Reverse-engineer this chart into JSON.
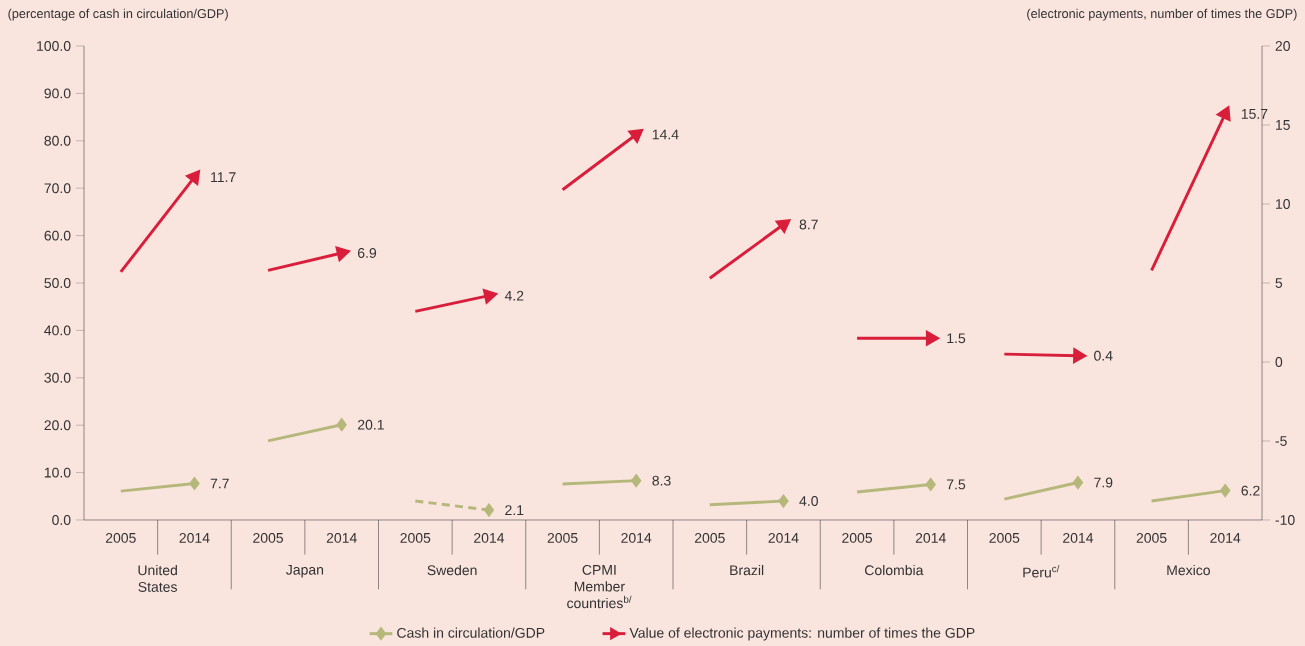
{
  "chart_data": {
    "type": "line",
    "ylabel": "(percentage of cash in circulation/GDP)",
    "y2label": "(electronic payments, number of times the GDP)",
    "categories": [
      "2005",
      "2014",
      "2005",
      "2014",
      "2005",
      "2014",
      "2005",
      "2014",
      "2005",
      "2014",
      "2005",
      "2014",
      "2005",
      "2014",
      "2005",
      "2014"
    ],
    "annotations": [
      "United States",
      "Japan",
      "Sweden",
      "CPMI Member countries$^{b/}$",
      "Brazil",
      "Colombia",
      "Peru$^{c/}$",
      "Mexico"
    ],
    "series": [
      {
        "name": "Cash in circulation/GDP",
        "color": "#b5b87a",
        "marker": "diamond",
        "line_style": "solid",
        "values": [
          6.1,
          7.7,
          16.7,
          20.1,
          null,
          null,
          7.6,
          8.3,
          3.2,
          4.0,
          5.9,
          7.5,
          4.4,
          7.9,
          4.0,
          6.2
        ],
        "value_labels": [
          null,
          "7.7",
          null,
          "20.1",
          null,
          null,
          null,
          "8.3",
          null,
          "4.0",
          null,
          "7.5",
          null,
          "7.9",
          null,
          "6.2"
        ]
      },
      {
        "color": "#b5b87a",
        "marker": "diamond",
        "line_style": "dashed",
        "values": [
          null,
          null,
          null,
          null,
          4.0,
          2.1,
          null,
          null,
          null,
          null,
          null,
          null,
          null,
          null,
          null,
          null
        ],
        "value_labels": [
          null,
          null,
          null,
          null,
          null,
          "2.1",
          null,
          null,
          null,
          null,
          null,
          null,
          null,
          null,
          null,
          null
        ]
      },
      {
        "name": "Value of electronic payments: number of times the GDP",
        "color": "#d81e3a",
        "axis": "y2",
        "marker": "triangle",
        "line_style": "solid",
        "values": [
          5.7,
          11.7,
          5.8,
          6.9,
          3.2,
          4.2,
          10.9,
          14.4,
          5.3,
          8.7,
          1.5,
          1.5,
          0.5,
          0.4,
          5.8,
          15.7
        ],
        "value_labels": [
          null,
          "11.7",
          null,
          "6.9",
          null,
          "4.2",
          null,
          "14.4",
          null,
          "8.7",
          null,
          "1.5",
          null,
          "0.4",
          null,
          "15.7"
        ]
      }
    ],
    "ylim": [
      0,
      100
    ],
    "yticks": [
      {
        "value": 0,
        "label": "0.0"
      },
      {
        "value": 10,
        "label": "10.0"
      },
      {
        "value": 20,
        "label": "20.0"
      },
      {
        "value": 30,
        "label": "30.0"
      },
      {
        "value": 40,
        "label": "40.0"
      },
      {
        "value": 50,
        "label": "50.0"
      },
      {
        "value": 60,
        "label": "60.0"
      },
      {
        "value": 70,
        "label": "70.0"
      },
      {
        "value": 80,
        "label": "80.0"
      },
      {
        "value": 90,
        "label": "90.0"
      },
      {
        "value": 100,
        "label": "100.0"
      }
    ],
    "y2lim": [
      -10,
      20
    ],
    "y2ticks": [
      -10,
      -5,
      0,
      5,
      10,
      15,
      20
    ],
    "grid": false,
    "legend": "bottom"
  }
}
